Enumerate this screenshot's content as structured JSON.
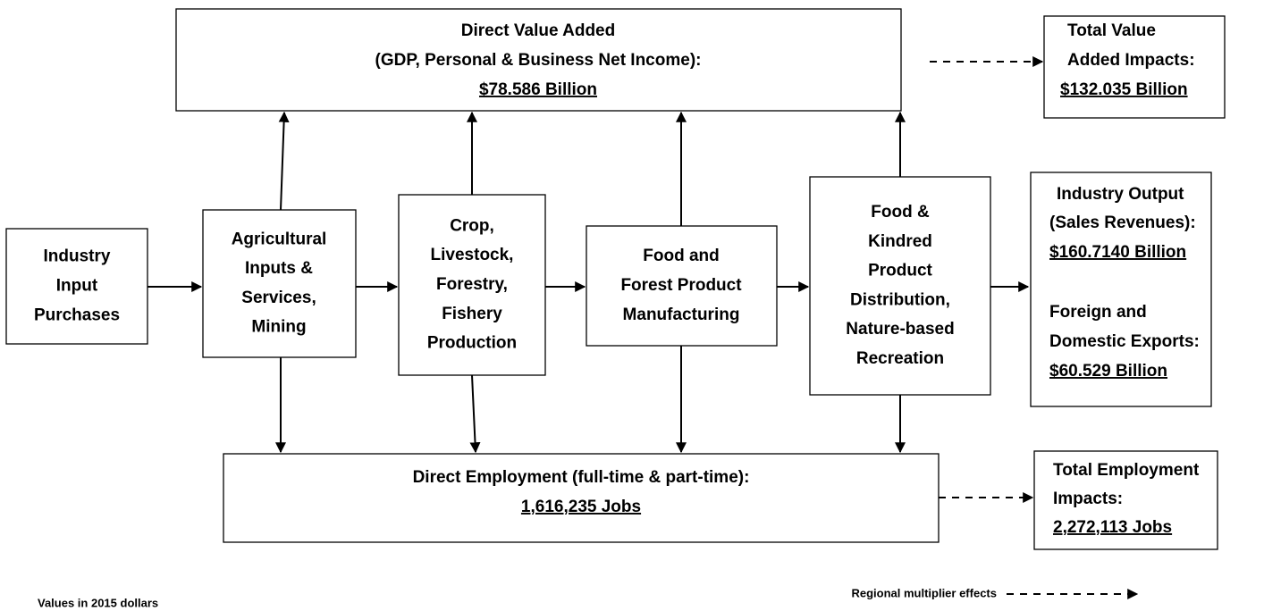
{
  "direct_value_added": {
    "lines": [
      "Direct Value Added",
      "(GDP, Personal & Business Net Income):"
    ],
    "value": "$78.586 Billion"
  },
  "total_value_added": {
    "lines": [
      "Total Value",
      "Added Impacts:"
    ],
    "value": "$132.035 Billion"
  },
  "stages": [
    {
      "lines": [
        "Industry",
        "Input",
        "Purchases"
      ]
    },
    {
      "lines": [
        "Agricultural",
        "Inputs &",
        "Services,",
        "Mining"
      ]
    },
    {
      "lines": [
        "Crop,",
        "Livestock,",
        "Forestry,",
        "Fishery",
        "Production"
      ]
    },
    {
      "lines": [
        "Food and",
        "Forest Product",
        "Manufacturing"
      ]
    },
    {
      "lines": [
        "Food &",
        "Kindred",
        "Product",
        "Distribution,",
        "Nature-based",
        "Recreation"
      ]
    }
  ],
  "output": {
    "industry_output": {
      "lines": [
        "Industry Output",
        "(Sales Revenues):"
      ],
      "value": "$160.7140 Billion"
    },
    "exports": {
      "lines": [
        "Foreign and",
        "Domestic Exports:"
      ],
      "value": "$60.529 Billion"
    }
  },
  "direct_employment": {
    "lines": [
      "Direct Employment (full-time & part-time):"
    ],
    "value": "1,616,235 Jobs"
  },
  "total_employment": {
    "lines": [
      "Total Employment",
      "Impacts:"
    ],
    "value": "2,272,113 Jobs"
  },
  "footnote": "Values in 2015 dollars",
  "legend": "Regional multiplier effects"
}
